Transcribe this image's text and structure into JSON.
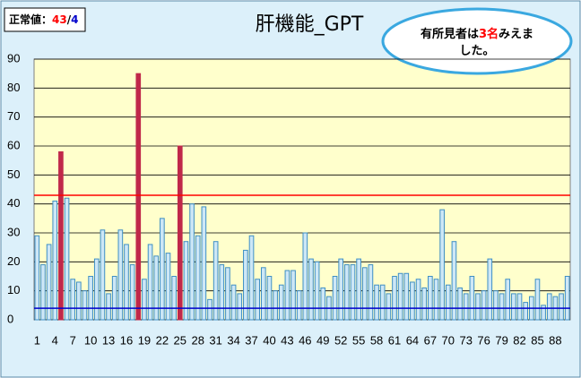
{
  "chart_data": {
    "type": "bar",
    "title": "肝機能_GPT",
    "categories": [
      "1",
      null,
      null,
      "4",
      null,
      null,
      "7",
      null,
      null,
      "10",
      null,
      null,
      "13",
      null,
      null,
      "16",
      null,
      null,
      "19",
      null,
      null,
      "22",
      null,
      null,
      "25",
      null,
      null,
      "28",
      null,
      null,
      "31",
      null,
      null,
      "34",
      null,
      null,
      "37",
      null,
      null,
      "40",
      null,
      null,
      "43",
      null,
      null,
      "46",
      null,
      null,
      "49",
      null,
      null,
      "52",
      null,
      null,
      "55",
      null,
      null,
      "58",
      null,
      null,
      "61",
      null,
      null,
      "64",
      null,
      null,
      "67",
      null,
      null,
      "70",
      null,
      null,
      "73",
      null,
      null,
      "76",
      null,
      null,
      "79",
      null,
      null,
      "82",
      null,
      null,
      "85",
      null,
      null,
      "88",
      null,
      null
    ],
    "values": [
      29,
      19,
      26,
      41,
      58,
      42,
      14,
      13,
      10,
      15,
      21,
      31,
      9,
      15,
      31,
      26,
      19,
      85,
      14,
      26,
      22,
      35,
      23,
      15,
      60,
      27,
      40,
      29,
      39,
      7,
      27,
      19,
      18,
      12,
      9,
      24,
      29,
      14,
      18,
      15,
      10,
      12,
      17,
      17,
      10,
      30,
      21,
      20,
      11,
      8,
      15,
      21,
      19,
      19,
      21,
      18,
      19,
      12,
      12,
      9,
      15,
      16,
      16,
      13,
      14,
      11,
      15,
      14,
      38,
      12,
      27,
      11,
      9,
      15,
      9,
      10,
      21,
      10,
      9,
      14,
      9,
      9,
      6,
      8,
      14,
      5,
      9,
      8,
      9,
      15
    ],
    "color": "#cde7f6",
    "border_color": "#3f8fc4",
    "highlight_color": "#c0284a",
    "ylim": [
      0,
      90
    ],
    "yticks": [
      0,
      10,
      20,
      30,
      40,
      50,
      60,
      70,
      80,
      90
    ],
    "grid": true,
    "upper_limit": 43,
    "upper_color": "#ff0000",
    "lower_limit": 4,
    "lower_color": "#0000cc",
    "normal_label": "正常値：",
    "limit_separator": "/",
    "annotation": [
      "有所見者は",
      "3名",
      "みえま",
      "した。"
    ]
  }
}
